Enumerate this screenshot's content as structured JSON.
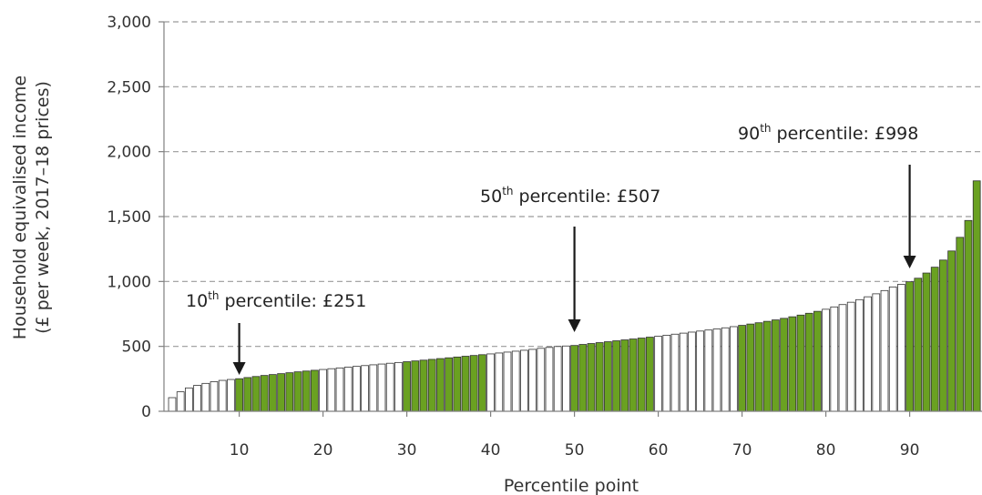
{
  "chart_data": {
    "type": "bar",
    "xlabel": "Percentile point",
    "ylabel_line1": "Household equivalised income",
    "ylabel_line2": "(£ per week, 2017–18 prices)",
    "ylim": [
      0,
      3000
    ],
    "y_ticks": [
      0,
      500,
      1000,
      1500,
      2000,
      2500,
      3000
    ],
    "y_tick_labels": [
      "0",
      "500",
      "1,000",
      "1,500",
      "2,000",
      "2,500",
      "3,000"
    ],
    "x_ticks": [
      10,
      20,
      30,
      40,
      50,
      60,
      70,
      80,
      90
    ],
    "x_tick_labels": [
      "10",
      "20",
      "30",
      "40",
      "50",
      "60",
      "70",
      "80",
      "90"
    ],
    "grid": "horizontal dashed",
    "bar_colors": {
      "highlighted": "#6aa121",
      "plain": "#ffffff"
    },
    "highlight_ranges": [
      [
        10,
        19
      ],
      [
        30,
        39
      ],
      [
        50,
        59
      ],
      [
        70,
        79
      ],
      [
        90,
        98
      ]
    ],
    "x": [
      2,
      3,
      4,
      5,
      6,
      7,
      8,
      9,
      10,
      11,
      12,
      13,
      14,
      15,
      16,
      17,
      18,
      19,
      20,
      21,
      22,
      23,
      24,
      25,
      26,
      27,
      28,
      29,
      30,
      31,
      32,
      33,
      34,
      35,
      36,
      37,
      38,
      39,
      40,
      41,
      42,
      43,
      44,
      45,
      46,
      47,
      48,
      49,
      50,
      51,
      52,
      53,
      54,
      55,
      56,
      57,
      58,
      59,
      60,
      61,
      62,
      63,
      64,
      65,
      66,
      67,
      68,
      69,
      70,
      71,
      72,
      73,
      74,
      75,
      76,
      77,
      78,
      79,
      80,
      81,
      82,
      83,
      84,
      85,
      86,
      87,
      88,
      89,
      90,
      91,
      92,
      93,
      94,
      95,
      96,
      97,
      98
    ],
    "values": [
      105,
      150,
      180,
      200,
      215,
      228,
      238,
      245,
      251,
      260,
      268,
      276,
      283,
      290,
      297,
      304,
      310,
      316,
      322,
      328,
      334,
      340,
      346,
      352,
      358,
      364,
      370,
      376,
      382,
      388,
      394,
      400,
      406,
      412,
      418,
      424,
      430,
      436,
      442,
      449,
      456,
      463,
      470,
      477,
      485,
      492,
      499,
      503,
      507,
      515,
      522,
      529,
      536,
      543,
      550,
      557,
      564,
      571,
      578,
      586,
      594,
      602,
      610,
      618,
      626,
      634,
      643,
      652,
      662,
      672,
      682,
      693,
      704,
      716,
      728,
      741,
      755,
      770,
      786,
      804,
      822,
      840,
      860,
      882,
      905,
      930,
      958,
      978,
      998,
      1025,
      1065,
      1110,
      1165,
      1235,
      1340,
      1470,
      1775
    ],
    "annotations": [
      {
        "id": "p10",
        "label": "10",
        "sup": "th",
        "rest": " percentile: £251",
        "x": 10,
        "value": 251
      },
      {
        "id": "p50",
        "label": "50",
        "sup": "th",
        "rest": " percentile: £507",
        "x": 50,
        "value": 507
      },
      {
        "id": "p90",
        "label": "90",
        "sup": "th",
        "rest": " percentile: £998",
        "x": 90,
        "value": 998
      }
    ]
  }
}
